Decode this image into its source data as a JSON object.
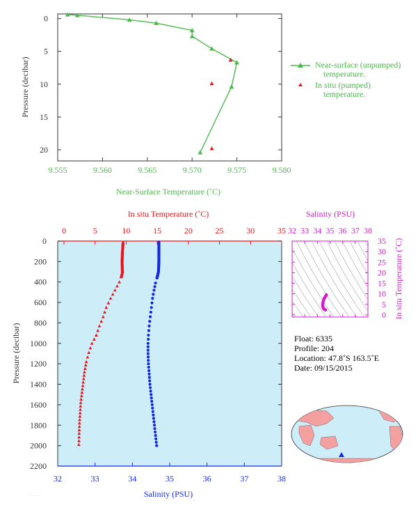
{
  "colors": {
    "green": "#4cb84c",
    "red": "#e8141c",
    "blue": "#1428e0",
    "magenta": "#d21ec8",
    "plot_bg": "#cdeef8",
    "axis_dark": "#333333",
    "land": "#f4a0a0",
    "ocean": "#cdeef8"
  },
  "chart_data": [
    {
      "type": "line",
      "panel": "near-surface",
      "xlabel": "Near-Surface Temperature (˚C)",
      "ylabel": "Pressure (decibar)",
      "xlim": [
        9.555,
        9.58
      ],
      "ylim": [
        21.7,
        -0.7
      ],
      "xticks": [
        "9.555",
        "9.560",
        "9.565",
        "9.570",
        "9.575",
        "9.580"
      ],
      "yticks": [
        "0",
        "5",
        "10",
        "15",
        "20"
      ],
      "legend_position": "right",
      "series": [
        {
          "name": "Near-surface (unpumped) temperature.",
          "marker": "triangle",
          "color": "green",
          "points": [
            [
              9.5561,
              -0.6
            ],
            [
              9.5572,
              -0.5
            ],
            [
              9.563,
              0.2
            ],
            [
              9.566,
              0.7
            ],
            [
              9.57,
              1.8
            ],
            [
              9.57,
              2.7
            ],
            [
              9.5722,
              4.6
            ],
            [
              9.575,
              6.7
            ],
            [
              9.5744,
              10.4
            ],
            [
              9.5709,
              20.4
            ]
          ]
        },
        {
          "name": "In situ (pumped) temperature.",
          "marker": "triangle",
          "color": "red",
          "points": [
            [
              9.5743,
              6.3
            ],
            [
              9.5722,
              9.9
            ],
            [
              9.5722,
              19.8
            ]
          ]
        }
      ]
    },
    {
      "type": "scatter",
      "panel": "profile",
      "ylabel": "Pressure (decibar)",
      "ylim": [
        2200,
        0
      ],
      "yticks": [
        "0",
        "200",
        "400",
        "600",
        "800",
        "1000",
        "1200",
        "1400",
        "1600",
        "1800",
        "2000",
        "2200"
      ],
      "top_axis": {
        "label": "In situ Temperature (˚C)",
        "range": [
          -1,
          35
        ],
        "ticks": [
          "0",
          "5",
          "10",
          "15",
          "20",
          "25",
          "30",
          "35"
        ]
      },
      "bottom_axis": {
        "label": "Salinity (PSU)",
        "range": [
          32,
          38
        ],
        "ticks": [
          "32",
          "33",
          "34",
          "35",
          "36",
          "37",
          "38"
        ]
      },
      "series": [
        {
          "name": "In situ Temperature",
          "color": "red",
          "marker": "triangle",
          "points": [
            [
              9.5,
              10
            ],
            [
              9.4,
              100
            ],
            [
              9.35,
              200
            ],
            [
              9.4,
              300
            ],
            [
              9.2,
              350
            ],
            [
              8.9,
              400
            ],
            [
              8.2,
              480
            ],
            [
              7.5,
              560
            ],
            [
              6.8,
              650
            ],
            [
              6.3,
              740
            ],
            [
              5.7,
              830
            ],
            [
              5.2,
              920
            ],
            [
              4.5,
              1000
            ],
            [
              4.0,
              1090
            ],
            [
              3.6,
              1180
            ],
            [
              3.3,
              1280
            ],
            [
              3.1,
              1380
            ],
            [
              2.9,
              1480
            ],
            [
              2.7,
              1580
            ],
            [
              2.6,
              1680
            ],
            [
              2.5,
              1780
            ],
            [
              2.45,
              1880
            ],
            [
              2.4,
              1990
            ]
          ]
        },
        {
          "name": "Salinity",
          "color": "blue",
          "marker": "circle",
          "points": [
            [
              34.71,
              10
            ],
            [
              34.71,
              100
            ],
            [
              34.71,
              200
            ],
            [
              34.7,
              300
            ],
            [
              34.66,
              360
            ],
            [
              34.62,
              410
            ],
            [
              34.58,
              480
            ],
            [
              34.54,
              560
            ],
            [
              34.51,
              650
            ],
            [
              34.48,
              740
            ],
            [
              34.45,
              830
            ],
            [
              34.43,
              920
            ],
            [
              34.42,
              1000
            ],
            [
              34.42,
              1100
            ],
            [
              34.43,
              1200
            ],
            [
              34.45,
              1300
            ],
            [
              34.47,
              1400
            ],
            [
              34.5,
              1500
            ],
            [
              34.53,
              1600
            ],
            [
              34.56,
              1700
            ],
            [
              34.59,
              1800
            ],
            [
              34.62,
              1900
            ],
            [
              34.65,
              2000
            ]
          ]
        }
      ]
    },
    {
      "type": "scatter",
      "panel": "ts-diagram",
      "xlabel": "Salinity (PSU)",
      "ylabel": "In situ Temperature (˚C)",
      "xlim": [
        32,
        38
      ],
      "ylim": [
        -1,
        35
      ],
      "xticks": [
        "32",
        "33",
        "34",
        "35",
        "36",
        "37",
        "38"
      ],
      "yticks": [
        "0",
        "5",
        "10",
        "15",
        "20",
        "25",
        "30",
        "35"
      ],
      "series": [
        {
          "name": "T-S",
          "color": "magenta",
          "points": [
            [
              34.71,
              9.5
            ],
            [
              34.7,
              9.3
            ],
            [
              34.64,
              8.8
            ],
            [
              34.58,
              8.2
            ],
            [
              34.52,
              7.5
            ],
            [
              34.47,
              6.6
            ],
            [
              34.43,
              5.6
            ],
            [
              34.42,
              4.6
            ],
            [
              34.44,
              3.7
            ],
            [
              34.48,
              3.1
            ],
            [
              34.54,
              2.7
            ],
            [
              34.6,
              2.5
            ],
            [
              34.65,
              2.4
            ]
          ]
        }
      ]
    }
  ],
  "info": {
    "float": "Float:  6335",
    "profile": "Profile:  204",
    "location": "Location:  47.8˚S  163.5˚E",
    "date": "Date:  09/15/2015"
  },
  "map": {
    "marker_lat": -47.8,
    "marker_lon": 163.5
  }
}
